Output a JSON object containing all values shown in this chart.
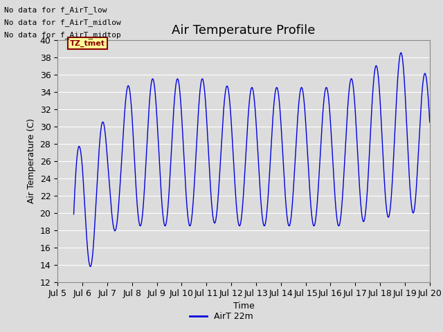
{
  "title": "Air Temperature Profile",
  "xlabel": "Time",
  "ylabel": "Air Temperature (C)",
  "ylim": [
    12,
    40
  ],
  "yticks": [
    12,
    14,
    16,
    18,
    20,
    22,
    24,
    26,
    28,
    30,
    32,
    34,
    36,
    38,
    40
  ],
  "xtick_labels": [
    "Jul 5",
    "Jul 6",
    "Jul 7",
    "Jul 8",
    "Jul 9",
    "Jul 10",
    "Jul 11",
    "Jul 12",
    "Jul 13",
    "Jul 14",
    "Jul 15",
    "Jul 16",
    "Jul 17",
    "Jul 18",
    "Jul 19",
    "Jul 20"
  ],
  "line_color": "#0000dd",
  "line_label": "AirT 22m",
  "bg_color": "#dcdcdc",
  "annotations": [
    "No data for f_AirT_low",
    "No data for f_AirT_midlow",
    "No data for f_AirT_midtop"
  ],
  "tz_label": "TZ_tmet",
  "title_fontsize": 13,
  "axis_fontsize": 9,
  "tick_fontsize": 9
}
